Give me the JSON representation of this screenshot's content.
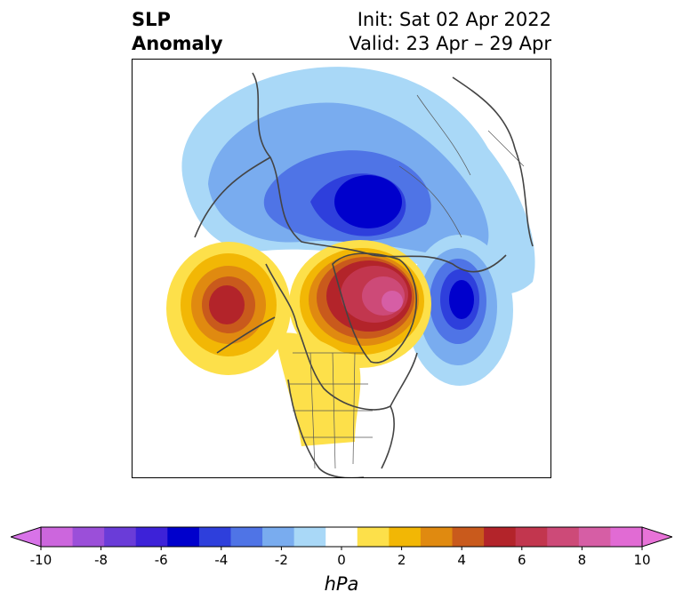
{
  "title": {
    "left_line1": "SLP",
    "left_line2": "Anomaly",
    "init": "Init: Sat 02 Apr 2022",
    "valid": "Valid: 23 Apr – 29 Apr"
  },
  "map": {
    "projection": "north-polar-stereographic",
    "anomaly_centers": [
      {
        "region": "Barents/Kara Sea",
        "sign": "negative",
        "peak_hpa": -6
      },
      {
        "region": "North Atlantic west of Europe",
        "sign": "negative",
        "peak_hpa": -6
      },
      {
        "region": "Greenland",
        "sign": "positive",
        "peak_hpa": 9
      },
      {
        "region": "Gulf of Alaska",
        "sign": "positive",
        "peak_hpa": 5
      },
      {
        "region": "Central United States",
        "sign": "positive",
        "peak_hpa": 1
      }
    ]
  },
  "colorbar": {
    "unit": "hPa",
    "tick_labels": [
      "-10",
      "-8",
      "-6",
      "-4",
      "-2",
      "0",
      "2",
      "4",
      "6",
      "8",
      "10"
    ],
    "bins": [
      -10,
      -9,
      -8,
      -7,
      -6,
      -5,
      -4,
      -3,
      -2,
      -1,
      1,
      2,
      3,
      4,
      5,
      6,
      7,
      8,
      9,
      10
    ],
    "colors": [
      "#cc66dd",
      "#9b4fd9",
      "#6a3cd8",
      "#3d22d8",
      "#0000cc",
      "#2e3fdc",
      "#4f74e6",
      "#79acef",
      "#a9d8f7",
      "#ffffff",
      "#fde04a",
      "#f2b705",
      "#e08a10",
      "#c95a1c",
      "#b3242a",
      "#c2364e",
      "#cd4a78",
      "#d65ea5",
      "#e16bd4"
    ],
    "extend_low_color": "#d873e8",
    "extend_high_color": "#e873d8"
  }
}
